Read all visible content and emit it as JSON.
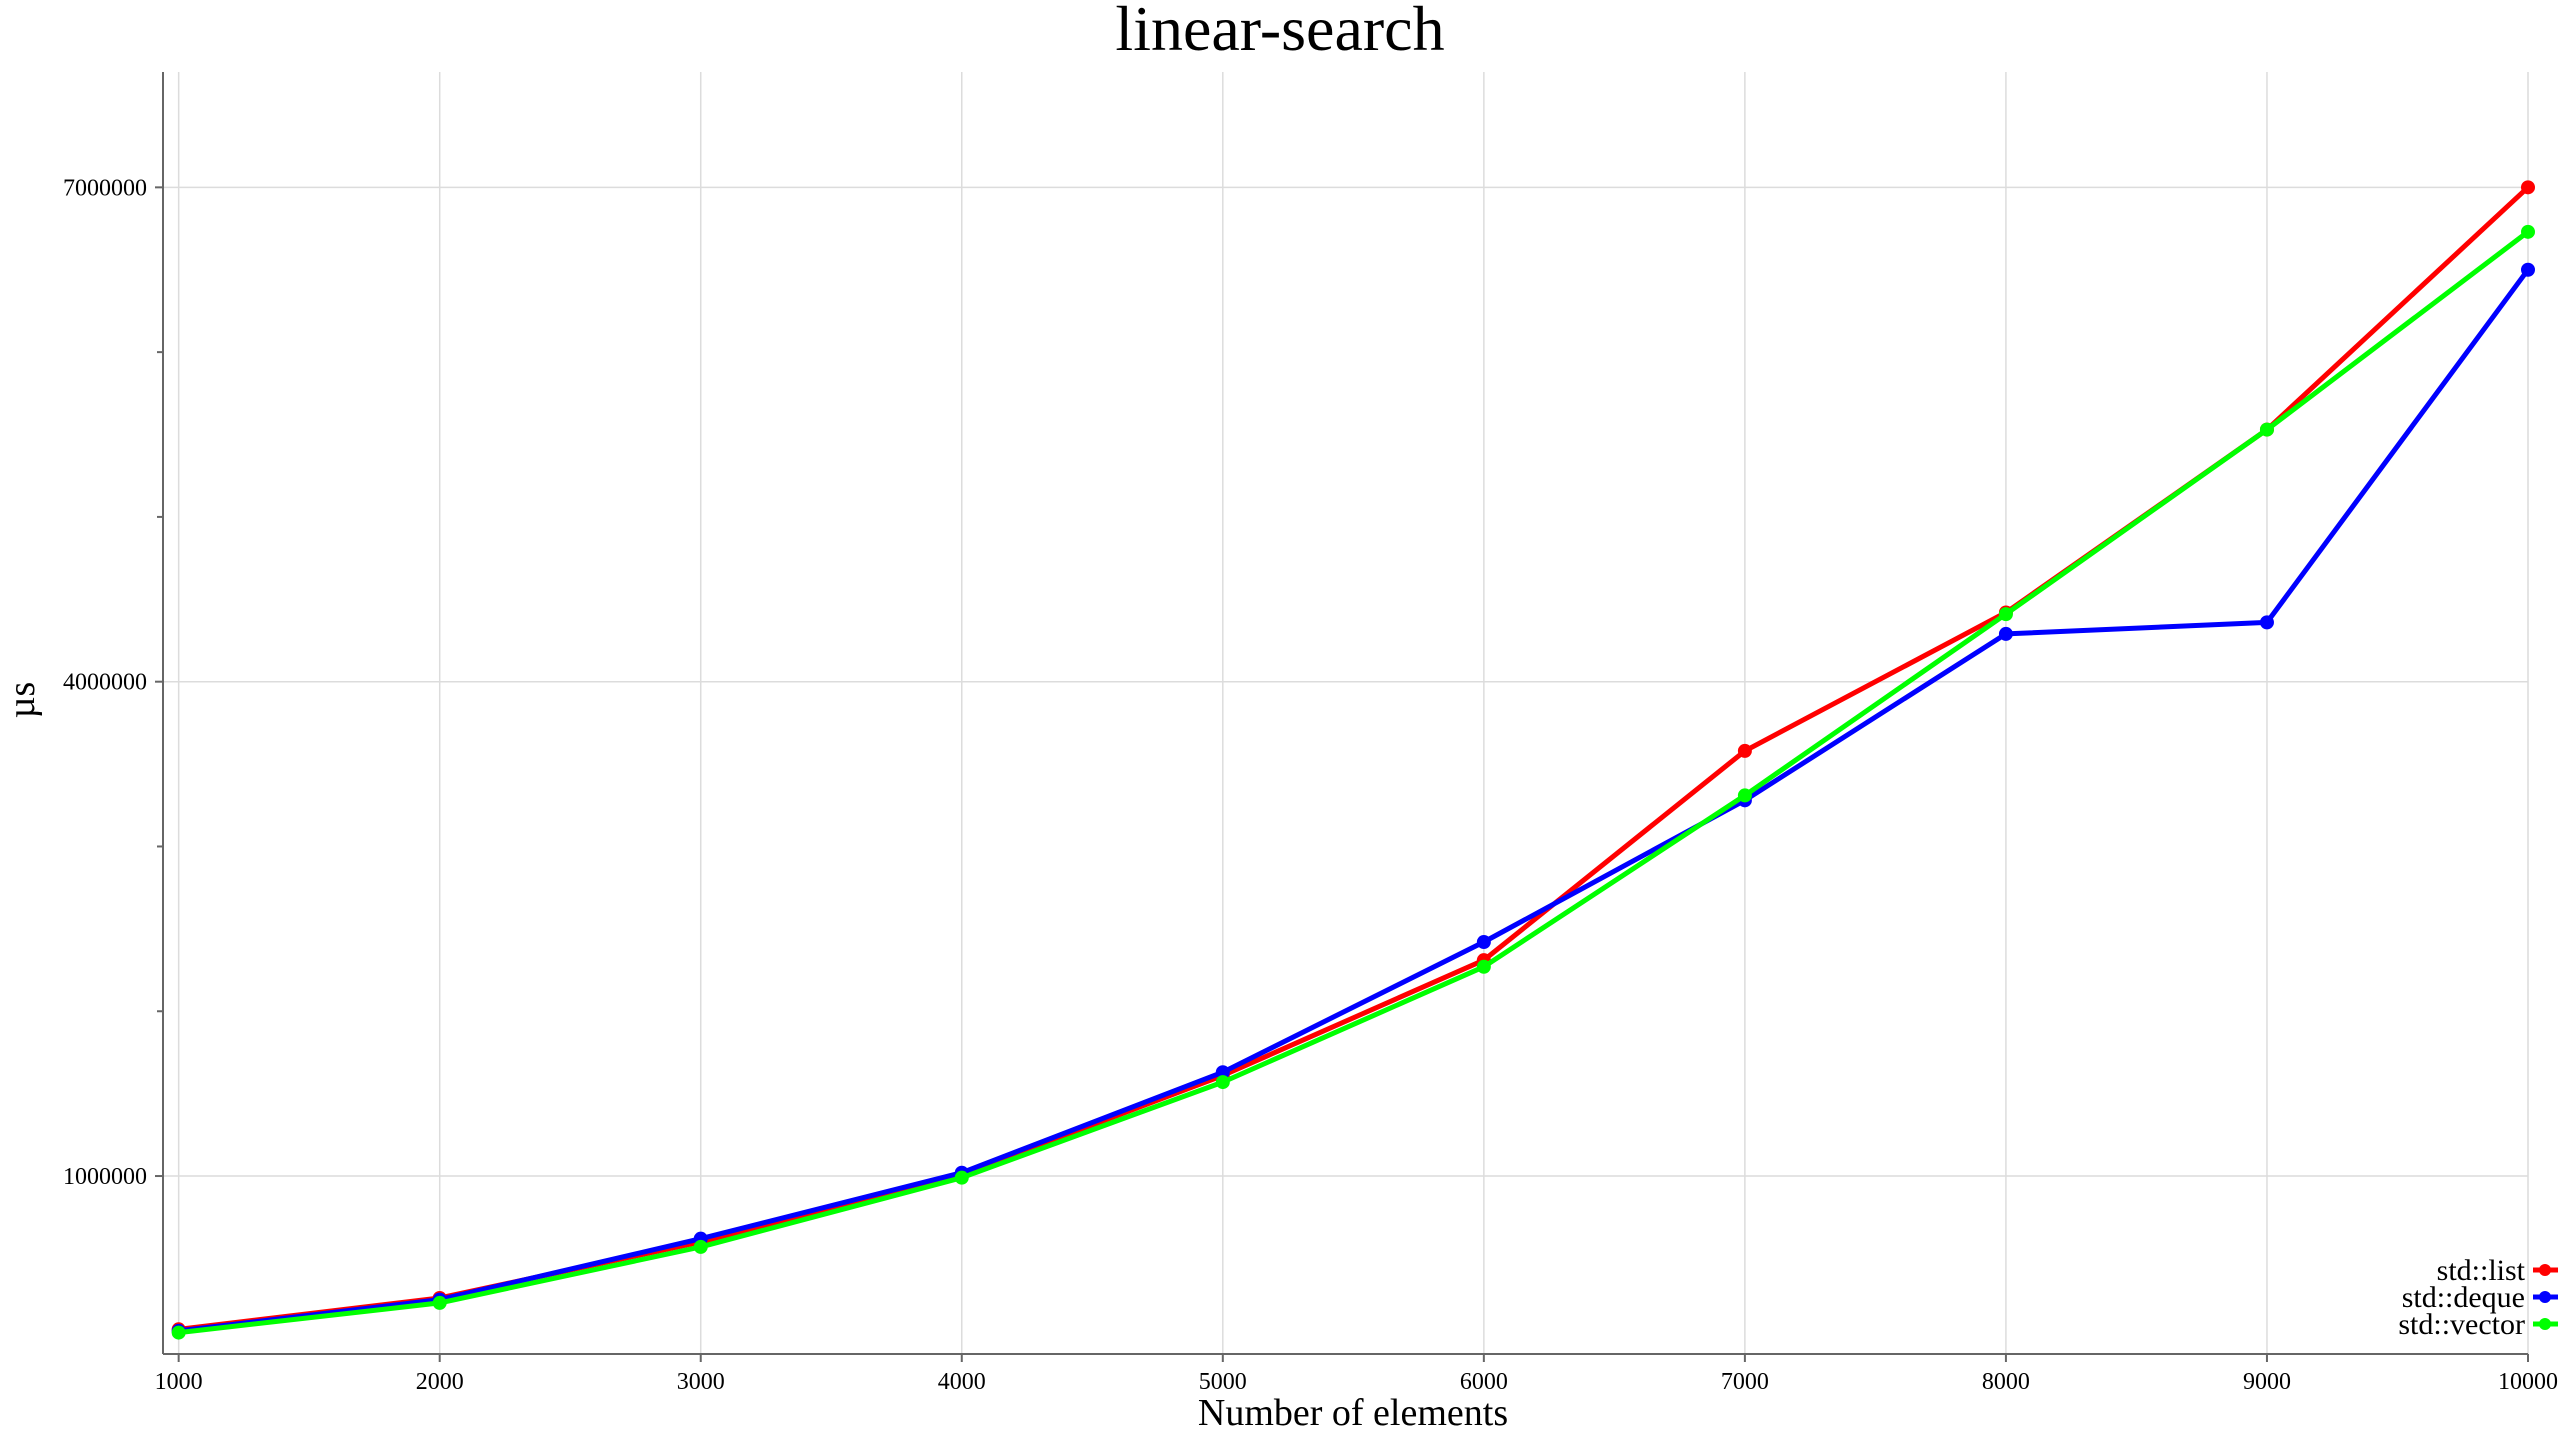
{
  "chart_data": {
    "type": "line",
    "title": "linear-search",
    "xlabel": "Number of elements",
    "ylabel": "µs",
    "x": [
      1000,
      2000,
      3000,
      4000,
      5000,
      6000,
      7000,
      8000,
      9000,
      10000
    ],
    "x_tick_labels": [
      "1000",
      "2000",
      "3000",
      "4000",
      "5000",
      "6000",
      "7000",
      "8000",
      "9000",
      "10000"
    ],
    "y_ticks": [
      1000000,
      4000000,
      7000000
    ],
    "y_tick_labels": [
      "1000000",
      "4000000",
      "7000000"
    ],
    "y_minor_ticks": [
      2000000,
      3000000,
      5000000,
      6000000
    ],
    "xlim": [
      940,
      10000
    ],
    "ylim": [
      -80000,
      7700000
    ],
    "grid": true,
    "legend_position": "bottom-right",
    "series": [
      {
        "name": "std::list",
        "color": "#ff0000",
        "values": [
          70000,
          260000,
          600000,
          1010000,
          1610000,
          2310000,
          3580000,
          4420000,
          5530000,
          7000000
        ]
      },
      {
        "name": "std::deque",
        "color": "#0000ff",
        "values": [
          60000,
          250000,
          620000,
          1020000,
          1630000,
          2420000,
          3280000,
          4290000,
          4360000,
          6500000
        ]
      },
      {
        "name": "std::vector",
        "color": "#00ff00",
        "values": [
          50000,
          230000,
          570000,
          990000,
          1570000,
          2270000,
          3310000,
          4410000,
          5530000,
          6730000
        ]
      }
    ]
  }
}
